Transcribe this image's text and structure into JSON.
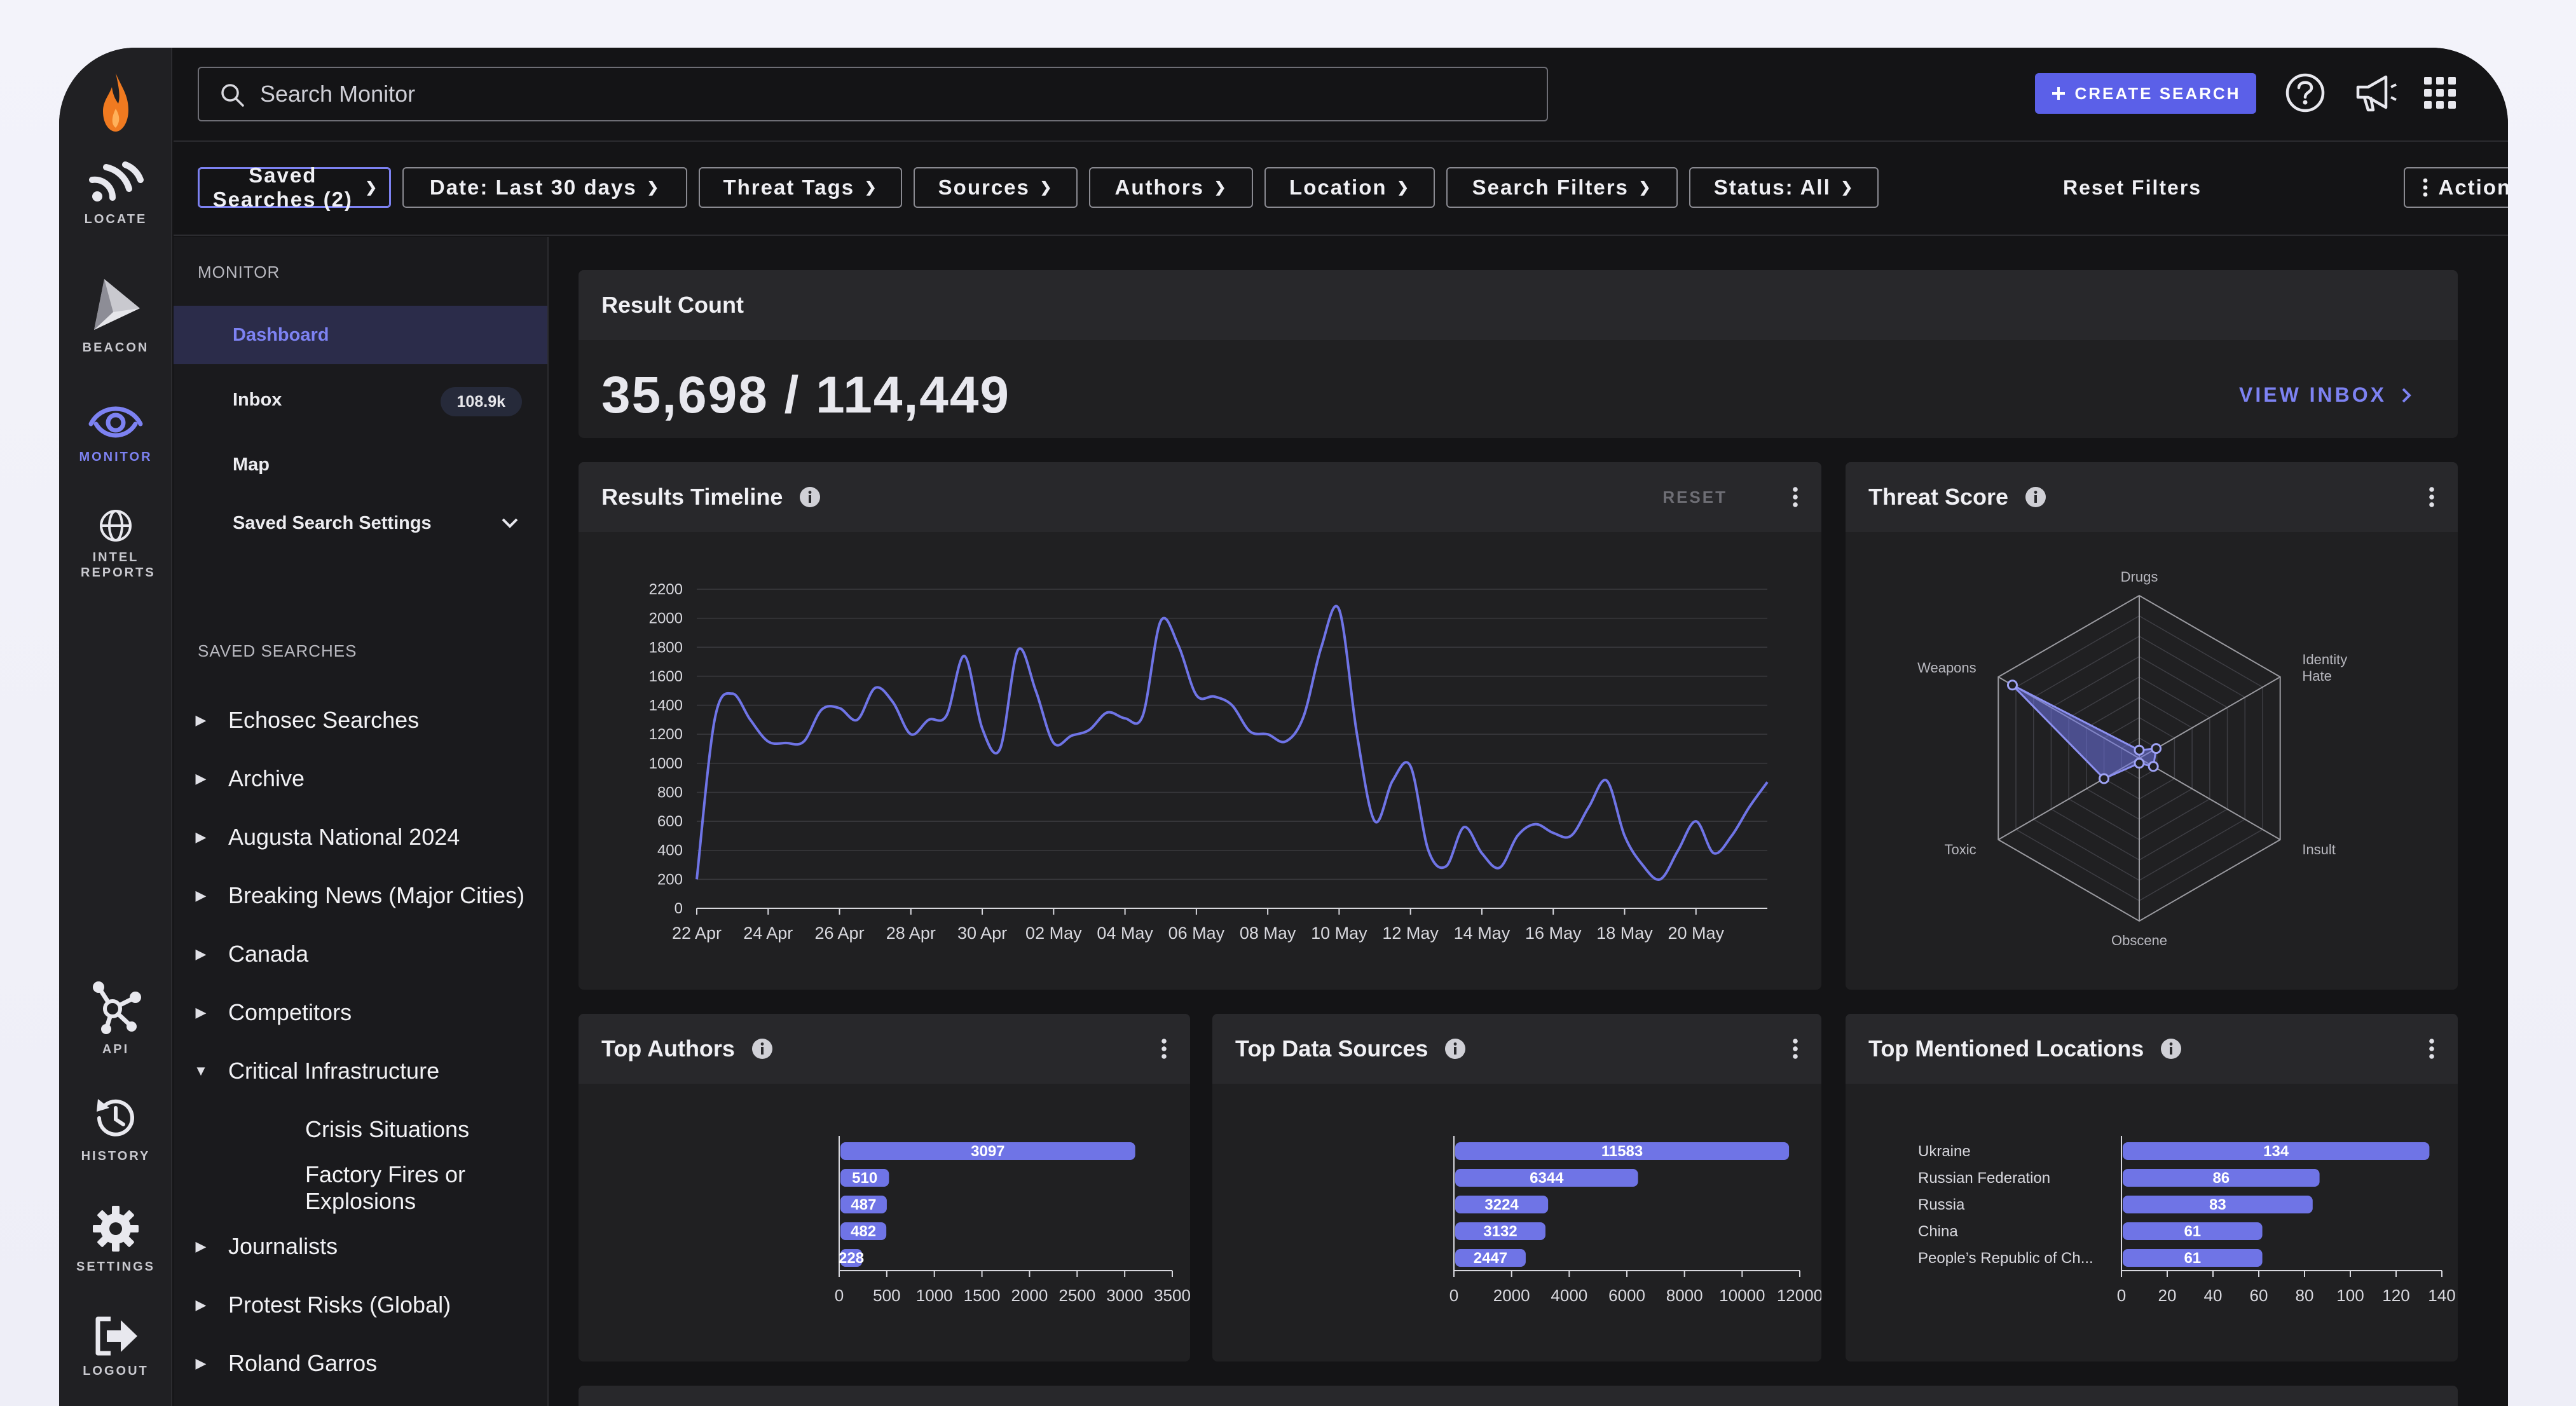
{
  "rail": {
    "items": [
      {
        "label": "LOCATE"
      },
      {
        "label": "BEACON"
      },
      {
        "label": "MONITOR"
      },
      {
        "label": "INTEL REPORTS"
      },
      {
        "label": "API"
      },
      {
        "label": "HISTORY"
      },
      {
        "label": "SETTINGS"
      },
      {
        "label": "LOGOUT"
      }
    ],
    "accent": "#7d82f2"
  },
  "search": {
    "placeholder": "Search Monitor",
    "value": ""
  },
  "topbar": {
    "create_search_label": "CREATE SEARCH"
  },
  "filters": [
    {
      "label": "Saved Searches (2)"
    },
    {
      "label": "Date: Last 30 days"
    },
    {
      "label": "Threat Tags"
    },
    {
      "label": "Sources"
    },
    {
      "label": "Authors"
    },
    {
      "label": "Location"
    },
    {
      "label": "Search Filters"
    },
    {
      "label": "Status: All"
    }
  ],
  "reset_filters_label": "Reset Filters",
  "actions_label": "Actions",
  "sidebar": {
    "monitor_heading": "MONITOR",
    "nav": [
      {
        "label": "Dashboard"
      },
      {
        "label": "Inbox",
        "badge": "108.9k"
      },
      {
        "label": "Map"
      },
      {
        "label": "Saved Search Settings"
      }
    ],
    "saved_heading": "SAVED SEARCHES",
    "saved": [
      {
        "label": "Echosec Searches"
      },
      {
        "label": "Archive"
      },
      {
        "label": "Augusta National 2024"
      },
      {
        "label": "Breaking News (Major Cities)"
      },
      {
        "label": "Canada"
      },
      {
        "label": "Competitors"
      },
      {
        "label": "Critical Infrastructure"
      },
      {
        "label": "Crisis Situations"
      },
      {
        "label": "Factory Fires or Explosions"
      },
      {
        "label": "Journalists"
      },
      {
        "label": "Protest Risks (Global)"
      },
      {
        "label": "Roland Garros"
      }
    ]
  },
  "result_count": {
    "title": "Result Count",
    "value": "35,698 / 114,449",
    "view_inbox": "VIEW INBOX"
  },
  "timeline": {
    "title": "Results Timeline",
    "reset": "RESET"
  },
  "threat": {
    "title": "Threat Score"
  },
  "authors": {
    "title": "Top Authors"
  },
  "sources": {
    "title": "Top Data Sources"
  },
  "locations": {
    "title": "Top Mentioned Locations"
  },
  "chart_data": [
    {
      "id": "timeline",
      "type": "line",
      "title": "Results Timeline",
      "ylim": [
        0,
        2200
      ],
      "yticks": [
        0,
        200,
        400,
        600,
        800,
        1000,
        1200,
        1400,
        1600,
        1800,
        2000,
        2200
      ],
      "xticks": [
        "22 Apr",
        "24 Apr",
        "26 Apr",
        "28 Apr",
        "30 Apr",
        "02 May",
        "04 May",
        "06 May",
        "08 May",
        "10 May",
        "12 May",
        "14 May",
        "16 May",
        "18 May",
        "20 May"
      ],
      "x": [
        0,
        0.5,
        1,
        1.5,
        2,
        2.5,
        3,
        3.5,
        4,
        4.5,
        5,
        5.5,
        6,
        6.5,
        7,
        7.5,
        8,
        8.5,
        9,
        9.5,
        10,
        10.5,
        11,
        11.5,
        12,
        12.5,
        13,
        13.5,
        14,
        14.5,
        15,
        15.5,
        16,
        16.5,
        17,
        17.5,
        18,
        18.5,
        19,
        19.5,
        20,
        20.5,
        21,
        21.5,
        22,
        22.5,
        23,
        23.5,
        24,
        24.5,
        25,
        25.5,
        26,
        26.5,
        27,
        27.5,
        28,
        28.5,
        29,
        29.5,
        30
      ],
      "values": [
        200,
        1300,
        1480,
        1300,
        1150,
        1140,
        1150,
        1370,
        1380,
        1300,
        1520,
        1420,
        1200,
        1300,
        1330,
        1740,
        1240,
        1100,
        1780,
        1500,
        1140,
        1190,
        1230,
        1350,
        1310,
        1330,
        1980,
        1810,
        1470,
        1460,
        1400,
        1220,
        1200,
        1150,
        1320,
        1800,
        2060,
        1200,
        600,
        880,
        980,
        400,
        290,
        560,
        380,
        280,
        500,
        580,
        520,
        500,
        700,
        880,
        500,
        300,
        200,
        400,
        600,
        380,
        500,
        700,
        870
      ]
    },
    {
      "id": "threat",
      "type": "radar",
      "title": "Threat Score",
      "axes": [
        "Drugs",
        "Identity Hate",
        "Insult",
        "Obscene",
        "Toxic",
        "Weapons"
      ],
      "values": [
        0.05,
        0.12,
        0.1,
        0.03,
        0.25,
        0.9
      ]
    },
    {
      "id": "authors",
      "type": "bar",
      "title": "Top Authors",
      "categories": [
        "",
        "",
        "",
        "",
        ""
      ],
      "values": [
        3097,
        510,
        487,
        482,
        228
      ],
      "xlim": [
        0,
        3500
      ],
      "xticks": [
        0,
        500,
        1000,
        1500,
        2000,
        2500,
        3000,
        3500
      ]
    },
    {
      "id": "sources",
      "type": "bar",
      "title": "Top Data Sources",
      "categories": [
        "",
        "",
        "",
        "",
        ""
      ],
      "values": [
        11583,
        6344,
        3224,
        3132,
        2447
      ],
      "xlim": [
        0,
        12000
      ],
      "xticks": [
        0,
        2000,
        4000,
        6000,
        8000,
        10000,
        12000
      ]
    },
    {
      "id": "locations",
      "type": "bar",
      "title": "Top Mentioned Locations",
      "categories": [
        "Ukraine",
        "Russian Federation",
        "Russia",
        "China",
        "People’s Republic of Ch..."
      ],
      "values": [
        134,
        86,
        83,
        61,
        61
      ],
      "xlim": [
        0,
        140
      ],
      "xticks": [
        0,
        20,
        40,
        60,
        80,
        100,
        120,
        140
      ]
    }
  ]
}
